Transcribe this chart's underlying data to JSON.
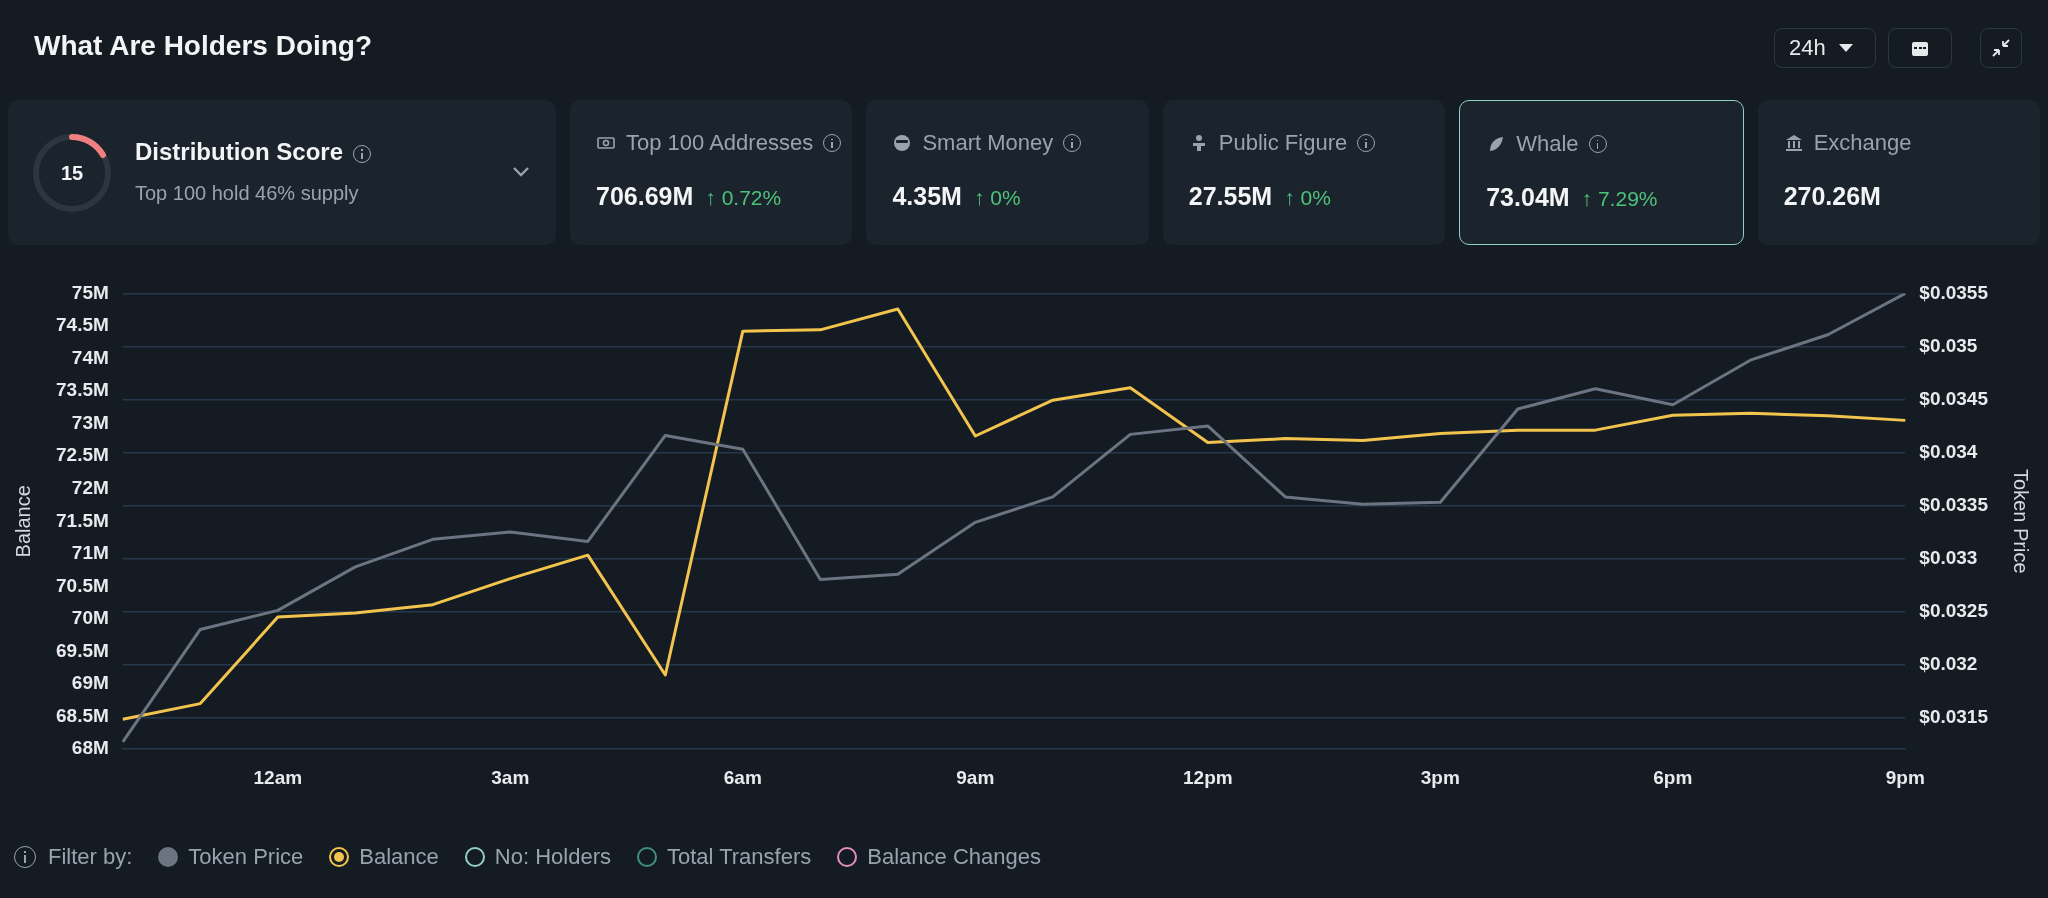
{
  "chart_data": [
    {
      "type": "other",
      "title": "What Are Holders Doing?",
      "categories": [
        "Distribution Score",
        "Top 100 Addresses",
        "Smart Money",
        "Public Figure",
        "Whale",
        "Exchange"
      ],
      "value_labels": [
        "15",
        "706.69M",
        "4.35M",
        "27.55M",
        "73.04M",
        "270.26M"
      ],
      "annotations": [
        "24h",
        "Top 100 hold 46% supply",
        "↑ 0.72%",
        "↑ 0%",
        "↑ 0%",
        "↑ 7.29%"
      ]
    },
    {
      "type": "line",
      "ylabel": "Balance",
      "y2label": "Token Price",
      "categories": [
        null,
        null,
        "12am",
        null,
        null,
        "3am",
        null,
        null,
        "6am",
        null,
        null,
        "9am",
        null,
        null,
        "12pm",
        null,
        null,
        "3pm",
        null,
        null,
        "6pm",
        null,
        null,
        "9pm"
      ],
      "series": [
        {
          "name": "Token Price",
          "color": "#6b7480",
          "axis": "y2",
          "values": [
            0.03127,
            0.03233,
            0.03251,
            0.03292,
            0.03318,
            0.03325,
            0.03316,
            0.03416,
            0.03403,
            0.0328,
            0.03285,
            0.03334,
            0.03358,
            0.03417,
            0.03425,
            0.03358,
            0.03351,
            0.03353,
            0.03441,
            0.0346,
            0.03445,
            0.03487,
            0.03511,
            0.0355
          ]
        },
        {
          "name": "Balance",
          "color": "#f2c44d",
          "values": [
            68.46,
            68.7,
            70.03,
            70.09,
            70.22,
            70.62,
            70.98,
            69.14,
            74.42,
            74.44,
            74.76,
            72.81,
            73.36,
            73.55,
            72.71,
            72.77,
            72.74,
            72.85,
            72.9,
            72.9,
            73.13,
            73.16,
            73.12,
            73.05
          ]
        }
      ],
      "ylim": [
        68,
        75
      ],
      "yticks": [
        {
          "value": 68,
          "label": "68M"
        },
        {
          "value": 68.5,
          "label": "68.5M"
        },
        {
          "value": 69,
          "label": "69M"
        },
        {
          "value": 69.5,
          "label": "69.5M"
        },
        {
          "value": 70,
          "label": "70M"
        },
        {
          "value": 70.5,
          "label": "70.5M"
        },
        {
          "value": 71,
          "label": "71M"
        },
        {
          "value": 71.5,
          "label": "71.5M"
        },
        {
          "value": 72,
          "label": "72M"
        },
        {
          "value": 72.5,
          "label": "72.5M"
        },
        {
          "value": 73,
          "label": "73M"
        },
        {
          "value": 73.5,
          "label": "73.5M"
        },
        {
          "value": 74,
          "label": "74M"
        },
        {
          "value": 74.5,
          "label": "74.5M"
        },
        {
          "value": 75,
          "label": "75M"
        }
      ],
      "y2lim": [
        0.0312,
        0.0355
      ],
      "y2ticks": [
        {
          "value": 0.0315,
          "label": "$0.0315"
        },
        {
          "value": 0.032,
          "label": "$0.032"
        },
        {
          "value": 0.0325,
          "label": "$0.0325"
        },
        {
          "value": 0.033,
          "label": "$0.033"
        },
        {
          "value": 0.0335,
          "label": "$0.0335"
        },
        {
          "value": 0.034,
          "label": "$0.034"
        },
        {
          "value": 0.0345,
          "label": "$0.0345"
        },
        {
          "value": 0.035,
          "label": "$0.035"
        },
        {
          "value": 0.0355,
          "label": "$0.0355"
        }
      ],
      "grid": "y",
      "legend": "bottom",
      "marker": "none",
      "line_style": "solid",
      "annotations": [
        "Filter by:",
        "No: Holders",
        "Total Transfers",
        "Balance Changes"
      ]
    }
  ]
}
